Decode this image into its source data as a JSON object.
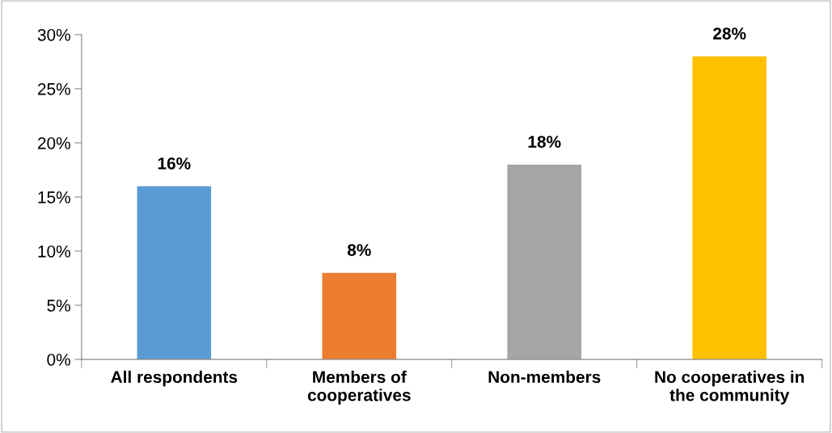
{
  "chart_data": {
    "type": "bar",
    "categories": [
      "All respondents",
      "Members of\ncooperatives",
      "Non-members",
      "No cooperatives in\nthe community"
    ],
    "values": [
      16,
      8,
      18,
      28
    ],
    "value_labels": [
      "16%",
      "8%",
      "18%",
      "28%"
    ],
    "colors": [
      "#5b9bd5",
      "#ed7d31",
      "#a5a5a5",
      "#ffc000"
    ],
    "ylim": [
      0,
      30
    ],
    "yticks": [
      {
        "value": 0,
        "label": "0%"
      },
      {
        "value": 5,
        "label": "5%"
      },
      {
        "value": 10,
        "label": "10%"
      },
      {
        "value": 15,
        "label": "15%"
      },
      {
        "value": 20,
        "label": "20%"
      },
      {
        "value": 25,
        "label": "25%"
      },
      {
        "value": 30,
        "label": "30%"
      }
    ],
    "grid": false,
    "legend": false
  }
}
